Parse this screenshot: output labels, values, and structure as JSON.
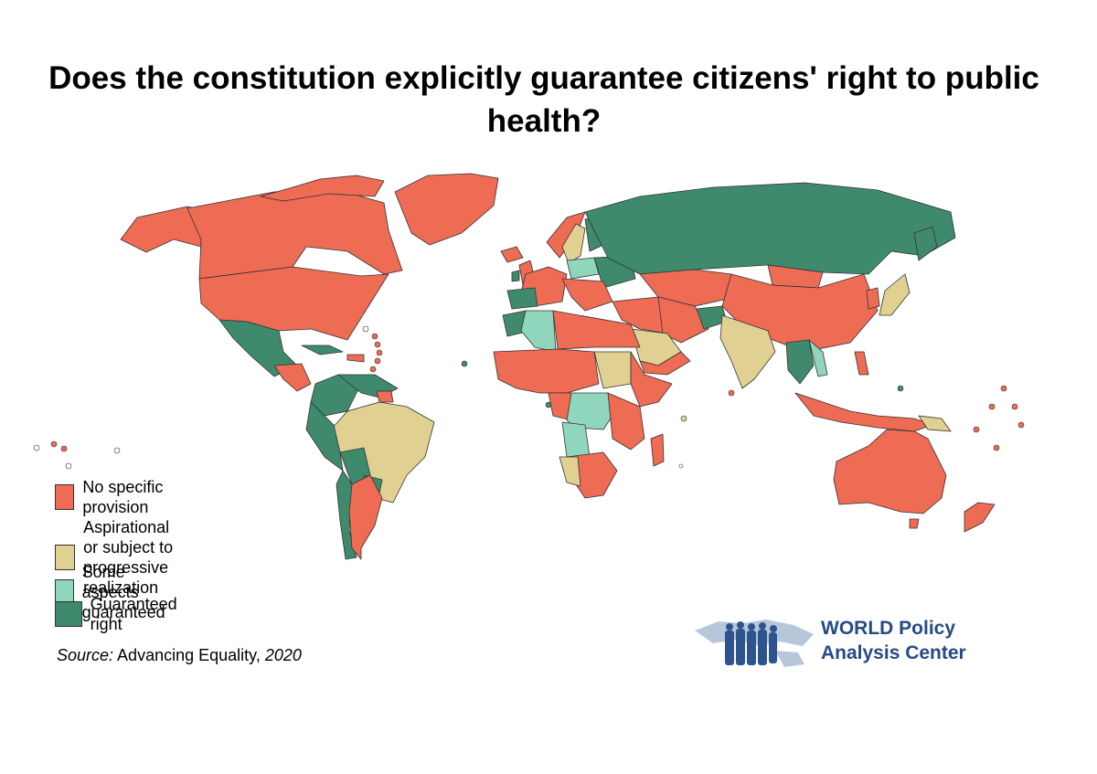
{
  "title": "Does the constitution explicitly guarantee citizens' right to public health?",
  "colors": {
    "no_provision": "#ee6b54",
    "aspirational": "#e0d192",
    "some_aspects": "#8fd6bd",
    "guaranteed": "#3f8a6d",
    "no_data": "#ffffff",
    "brand": "#254a87"
  },
  "legend": [
    {
      "key": "no_provision",
      "label": "No specific provision",
      "color": "#ee6b54"
    },
    {
      "key": "aspirational",
      "label": "Aspirational or subject to\nprogressive realization",
      "color": "#e0d192"
    },
    {
      "key": "some_aspects",
      "label": "Some aspects guaranteed",
      "color": "#8fd6bd"
    },
    {
      "key": "guaranteed",
      "label": "Guaranteed right",
      "color": "#3f8a6d"
    }
  ],
  "source": {
    "prefix": "Source:",
    "text": " Advancing Equality, ",
    "year": "2020"
  },
  "brand": {
    "name": "WORLD Policy\nAnalysis Center",
    "logo_icon": "people-over-world-map-logo"
  }
}
